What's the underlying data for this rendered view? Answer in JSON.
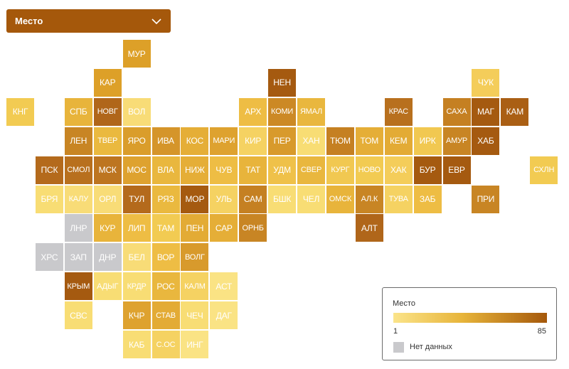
{
  "dropdown": {
    "label": "Место"
  },
  "legend": {
    "title": "Место",
    "min_label": "1",
    "max_label": "85",
    "no_data_label": "Нет данных",
    "color_low": "#fbe48a",
    "color_mid": "#e7b43a",
    "color_high": "#a5580b",
    "color_no_data": "#c9c9cc"
  },
  "regions": [
    {
      "label": "МУР",
      "col": 4,
      "row": 0,
      "color": "#dda028"
    },
    {
      "label": "КАР",
      "col": 3,
      "row": 1,
      "color": "#dda028"
    },
    {
      "label": "НЕН",
      "col": 9,
      "row": 1,
      "color": "#a55a10"
    },
    {
      "label": "ЧУК",
      "col": 16,
      "row": 1,
      "color": "#f4cd5a"
    },
    {
      "label": "КНГ",
      "col": 0,
      "row": 2,
      "color": "#f2cb52"
    },
    {
      "label": "СПБ",
      "col": 2,
      "row": 2,
      "color": "#e8b43b"
    },
    {
      "label": "НОВГ",
      "col": 3,
      "row": 2,
      "color": "#b0661a"
    },
    {
      "label": "ВОЛ",
      "col": 4,
      "row": 2,
      "color": "#f8dc77"
    },
    {
      "label": "АРХ",
      "col": 8,
      "row": 2,
      "color": "#eebd44"
    },
    {
      "label": "КОМИ",
      "col": 9,
      "row": 2,
      "color": "#cc8925"
    },
    {
      "label": "ЯМАЛ",
      "col": 10,
      "row": 2,
      "color": "#e9b73e"
    },
    {
      "label": "КРАС",
      "col": 13,
      "row": 2,
      "color": "#b8701e"
    },
    {
      "label": "САХА",
      "col": 15,
      "row": 2,
      "color": "#c58022"
    },
    {
      "label": "МАГ",
      "col": 16,
      "row": 2,
      "color": "#a55a10"
    },
    {
      "label": "КАМ",
      "col": 17,
      "row": 2,
      "color": "#aa5f14"
    },
    {
      "label": "ЛЕН",
      "col": 2,
      "row": 3,
      "color": "#c88524"
    },
    {
      "label": "ТВЕР",
      "col": 3,
      "row": 3,
      "color": "#eab93f"
    },
    {
      "label": "ЯРО",
      "col": 4,
      "row": 3,
      "color": "#da9d2b"
    },
    {
      "label": "ИВА",
      "col": 5,
      "row": 3,
      "color": "#d5952a"
    },
    {
      "label": "КОС",
      "col": 6,
      "row": 3,
      "color": "#e5ae37"
    },
    {
      "label": "МАРИ",
      "col": 7,
      "row": 3,
      "color": "#dea22f"
    },
    {
      "label": "КИР",
      "col": 8,
      "row": 3,
      "color": "#f5d262"
    },
    {
      "label": "ПЕР",
      "col": 9,
      "row": 3,
      "color": "#d89a2c"
    },
    {
      "label": "ХАН",
      "col": 10,
      "row": 3,
      "color": "#f8dd74"
    },
    {
      "label": "ТЮМ",
      "col": 11,
      "row": 3,
      "color": "#c58022"
    },
    {
      "label": "ТОМ",
      "col": 12,
      "row": 3,
      "color": "#e5ae37"
    },
    {
      "label": "КЕМ",
      "col": 13,
      "row": 3,
      "color": "#e3ab35"
    },
    {
      "label": "ИРК",
      "col": 14,
      "row": 3,
      "color": "#f1c851"
    },
    {
      "label": "АМУР",
      "col": 15,
      "row": 3,
      "color": "#c88524"
    },
    {
      "label": "ХАБ",
      "col": 16,
      "row": 3,
      "color": "#a55a10"
    },
    {
      "label": "ПСК",
      "col": 1,
      "row": 4,
      "color": "#b46a1c"
    },
    {
      "label": "СМОЛ",
      "col": 2,
      "row": 4,
      "color": "#b8701e"
    },
    {
      "label": "МСК",
      "col": 3,
      "row": 4,
      "color": "#bd7520"
    },
    {
      "label": "МОС",
      "col": 4,
      "row": 4,
      "color": "#dea22f"
    },
    {
      "label": "ВЛА",
      "col": 5,
      "row": 4,
      "color": "#e9b73e"
    },
    {
      "label": "НИЖ",
      "col": 6,
      "row": 4,
      "color": "#e5ae37"
    },
    {
      "label": "ЧУВ",
      "col": 7,
      "row": 4,
      "color": "#eebd44"
    },
    {
      "label": "ТАТ",
      "col": 8,
      "row": 4,
      "color": "#e8b43b"
    },
    {
      "label": "УДМ",
      "col": 9,
      "row": 4,
      "color": "#efc149"
    },
    {
      "label": "СВЕР",
      "col": 10,
      "row": 4,
      "color": "#e9b73e"
    },
    {
      "label": "КУРГ",
      "col": 11,
      "row": 4,
      "color": "#f1c851"
    },
    {
      "label": "НОВО",
      "col": 12,
      "row": 4,
      "color": "#f2cb52"
    },
    {
      "label": "ХАК",
      "col": 13,
      "row": 4,
      "color": "#f4cd5a"
    },
    {
      "label": "БУР",
      "col": 14,
      "row": 4,
      "color": "#a55a10"
    },
    {
      "label": "ЕВР",
      "col": 15,
      "row": 4,
      "color": "#a55a10"
    },
    {
      "label": "СХЛН",
      "col": 18,
      "row": 4,
      "color": "#f2cb52"
    },
    {
      "label": "БРЯ",
      "col": 1,
      "row": 5,
      "color": "#f8dd74"
    },
    {
      "label": "КАЛУ",
      "col": 2,
      "row": 5,
      "color": "#f8dc77"
    },
    {
      "label": "ОРЛ",
      "col": 3,
      "row": 5,
      "color": "#f8dc77"
    },
    {
      "label": "ТУЛ",
      "col": 4,
      "row": 5,
      "color": "#b46a1c"
    },
    {
      "label": "РЯЗ",
      "col": 5,
      "row": 5,
      "color": "#eab93f"
    },
    {
      "label": "МОР",
      "col": 6,
      "row": 5,
      "color": "#a55a10"
    },
    {
      "label": "УЛЬ",
      "col": 7,
      "row": 5,
      "color": "#f5d262"
    },
    {
      "label": "САМ",
      "col": 8,
      "row": 5,
      "color": "#c58022"
    },
    {
      "label": "БШК",
      "col": 9,
      "row": 5,
      "color": "#f8dd74"
    },
    {
      "label": "ЧЕЛ",
      "col": 10,
      "row": 5,
      "color": "#f8dd74"
    },
    {
      "label": "ОМСК",
      "col": 11,
      "row": 5,
      "color": "#e8b43b"
    },
    {
      "label": "АЛ.К",
      "col": 12,
      "row": 5,
      "color": "#c88524"
    },
    {
      "label": "ТУВА",
      "col": 13,
      "row": 5,
      "color": "#f5d262"
    },
    {
      "label": "ЗАБ",
      "col": 14,
      "row": 5,
      "color": "#eebd44"
    },
    {
      "label": "ПРИ",
      "col": 16,
      "row": 5,
      "color": "#c88524"
    },
    {
      "label": "ЛНР",
      "col": 2,
      "row": 6,
      "color": "#c9c9cc"
    },
    {
      "label": "КУР",
      "col": 3,
      "row": 6,
      "color": "#e8b43b"
    },
    {
      "label": "ЛИП",
      "col": 4,
      "row": 6,
      "color": "#eebd44"
    },
    {
      "label": "ТАМ",
      "col": 5,
      "row": 6,
      "color": "#f2cb52"
    },
    {
      "label": "ПЕН",
      "col": 6,
      "row": 6,
      "color": "#e3ab35"
    },
    {
      "label": "САР",
      "col": 7,
      "row": 6,
      "color": "#e5ae37"
    },
    {
      "label": "ОРНБ",
      "col": 8,
      "row": 6,
      "color": "#c88524"
    },
    {
      "label": "АЛТ",
      "col": 12,
      "row": 6,
      "color": "#b0661a"
    },
    {
      "label": "ХРС",
      "col": 1,
      "row": 7,
      "color": "#c9c9cc"
    },
    {
      "label": "ЗАП",
      "col": 2,
      "row": 7,
      "color": "#c9c9cc"
    },
    {
      "label": "ДНР",
      "col": 3,
      "row": 7,
      "color": "#c9c9cc"
    },
    {
      "label": "БЕЛ",
      "col": 4,
      "row": 7,
      "color": "#f8dc77"
    },
    {
      "label": "ВОР",
      "col": 5,
      "row": 7,
      "color": "#eebd44"
    },
    {
      "label": "ВОЛГ",
      "col": 6,
      "row": 7,
      "color": "#d89a2c"
    },
    {
      "label": "КРЫМ",
      "col": 2,
      "row": 8,
      "color": "#a55a10"
    },
    {
      "label": "АДЫГ",
      "col": 3,
      "row": 8,
      "color": "#f8dd74"
    },
    {
      "label": "КРДР",
      "col": 4,
      "row": 8,
      "color": "#f8dd74"
    },
    {
      "label": "РОС",
      "col": 5,
      "row": 8,
      "color": "#e9b73e"
    },
    {
      "label": "КАЛМ",
      "col": 6,
      "row": 8,
      "color": "#f5d262"
    },
    {
      "label": "АСТ",
      "col": 7,
      "row": 8,
      "color": "#fae384"
    },
    {
      "label": "СВС",
      "col": 2,
      "row": 9,
      "color": "#f8dd74"
    },
    {
      "label": "КЧР",
      "col": 4,
      "row": 9,
      "color": "#dea22f"
    },
    {
      "label": "СТАВ",
      "col": 5,
      "row": 9,
      "color": "#e3ab35"
    },
    {
      "label": "ЧЕЧ",
      "col": 6,
      "row": 9,
      "color": "#f8dd74"
    },
    {
      "label": "ДАГ",
      "col": 7,
      "row": 9,
      "color": "#fae384"
    },
    {
      "label": "КАБ",
      "col": 4,
      "row": 10,
      "color": "#f8dd74"
    },
    {
      "label": "С.ОС",
      "col": 5,
      "row": 10,
      "color": "#f5d262"
    },
    {
      "label": "ИНГ",
      "col": 6,
      "row": 10,
      "color": "#fae384"
    }
  ]
}
